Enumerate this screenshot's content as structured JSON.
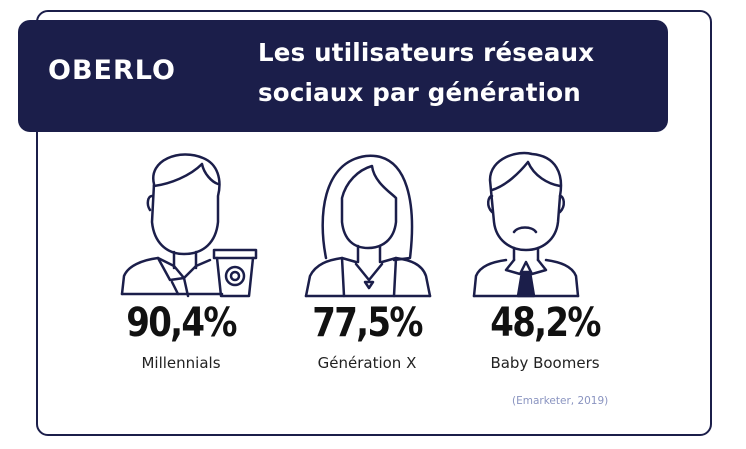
{
  "brand": {
    "logo": "OBERLO",
    "color_navy": "#1b1e4a"
  },
  "title_lines": [
    "Les utilisateurs réseaux",
    "sociaux par génération"
  ],
  "stats": [
    {
      "value": "90,4%",
      "label": "Millennials",
      "icon": "millennial-person-with-coffee-icon"
    },
    {
      "value": "77,5%",
      "label": "Génération X",
      "icon": "woman-long-hair-icon"
    },
    {
      "value": "48,2%",
      "label": "Baby Boomers",
      "icon": "man-with-tie-icon"
    }
  ],
  "source": "(Emarketer, 2019)"
}
